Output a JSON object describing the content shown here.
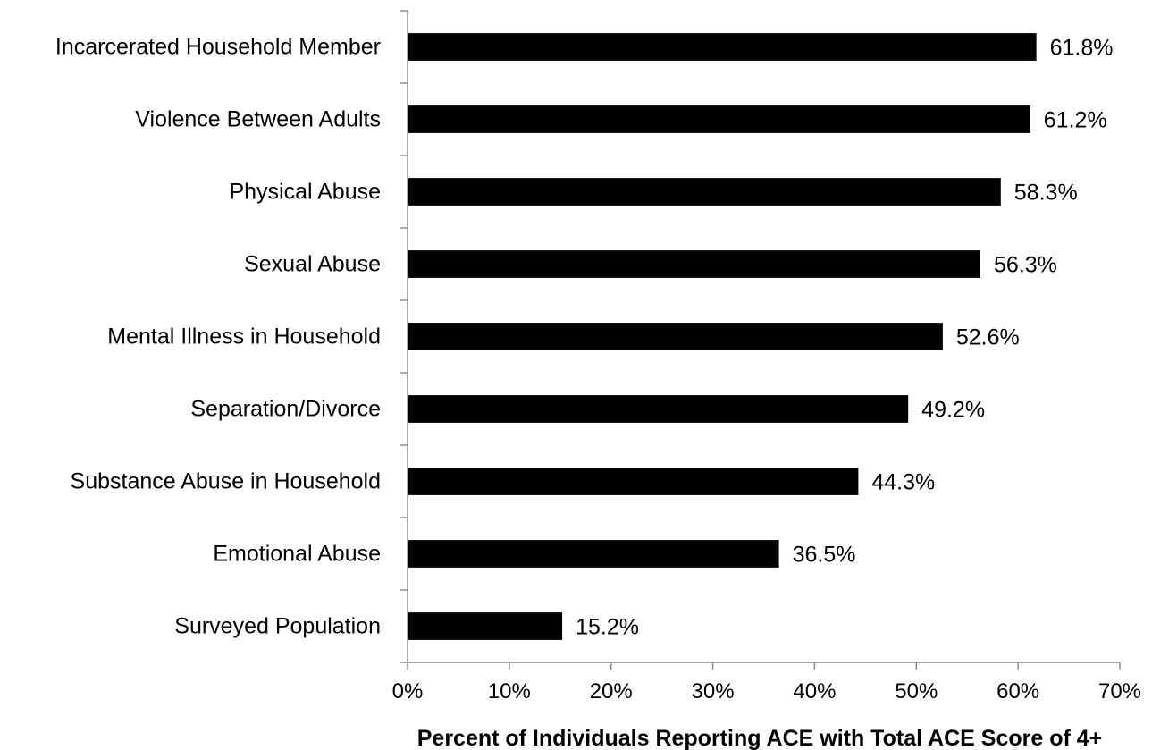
{
  "chart_data": {
    "type": "bar",
    "orientation": "horizontal",
    "categories": [
      "Incarcerated Household Member",
      "Violence Between Adults",
      "Physical Abuse",
      "Sexual Abuse",
      "Mental Illness in Household",
      "Separation/Divorce",
      "Substance Abuse in Household",
      "Emotional Abuse",
      "Surveyed Population"
    ],
    "values": [
      61.8,
      61.2,
      58.3,
      56.3,
      52.6,
      49.2,
      44.3,
      36.5,
      15.2
    ],
    "value_labels": [
      "61.8%",
      "61.2%",
      "58.3%",
      "56.3%",
      "52.6%",
      "49.2%",
      "44.3%",
      "36.5%",
      "15.2%"
    ],
    "xlabel": "Percent of Individuals Reporting ACE with Total ACE Score of 4+",
    "ylabel": "",
    "title": "",
    "xlim": [
      0,
      70
    ],
    "x_ticks": [
      0,
      10,
      20,
      30,
      40,
      50,
      60,
      70
    ],
    "x_tick_labels": [
      "0%",
      "10%",
      "20%",
      "30%",
      "40%",
      "50%",
      "60%",
      "70%"
    ],
    "grid": false,
    "legend": "none",
    "bar_color": "#000000",
    "axis_color": "#8c8c8c"
  }
}
